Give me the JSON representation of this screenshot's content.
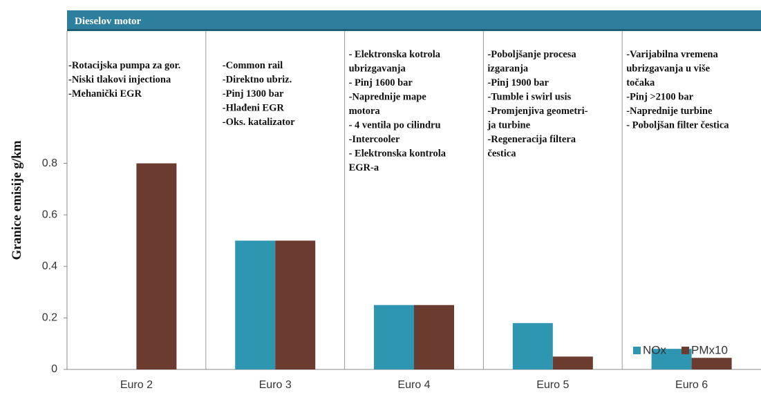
{
  "chart_data": {
    "type": "bar",
    "title": "Dieselov motor",
    "y_label": "Granice emisije  g/km",
    "categories": [
      "Euro 2",
      "Euro 3",
      "Euro 4",
      "Euro 5",
      "Euro 6"
    ],
    "series": [
      {
        "name": "NOx",
        "color": "#2e96b0",
        "values": [
          null,
          0.5,
          0.25,
          0.18,
          0.08
        ]
      },
      {
        "name": "PMx10",
        "color": "#6b3b2f",
        "values": [
          0.8,
          0.5,
          0.25,
          0.05,
          0.045
        ]
      }
    ],
    "ylim": [
      0,
      1.3
    ],
    "yticks": [
      0,
      0.2,
      0.4,
      0.6,
      0.8
    ],
    "legend": "lower right",
    "annotations": [
      [
        "-Rotacijska pumpa za gor.",
        "-Niski tlakovi injectiona",
        "-Mehanički EGR"
      ],
      [
        "-Common rail",
        "-Direktno ubriz.",
        "-Pinj 1300 bar",
        "-Hlađeni EGR",
        "-Oks. katalizator"
      ],
      [
        "- Elektronska kotrola",
        "ubrizgavanja",
        "- Pinj 1600 bar",
        "-Naprednije mape",
        "motora",
        "- 4 ventila po cilindru",
        "-Intercooler",
        "- Elektronska kontrola",
        "EGR-a"
      ],
      [
        "-Poboljšanje procesa",
        "izgaranja",
        "-Pinj 1900 bar",
        "-Tumble i swirl usis",
        "-Promjenjiva geometri-",
        "ja turbine",
        "-Regeneracija filtera",
        "čestica"
      ],
      [
        "-Varijabilna vremena",
        "ubrizgavanja u više",
        "točaka",
        "-Pinj >2100 bar",
        "-Naprednije turbine",
        "- Poboljšan filter čestica"
      ]
    ]
  }
}
